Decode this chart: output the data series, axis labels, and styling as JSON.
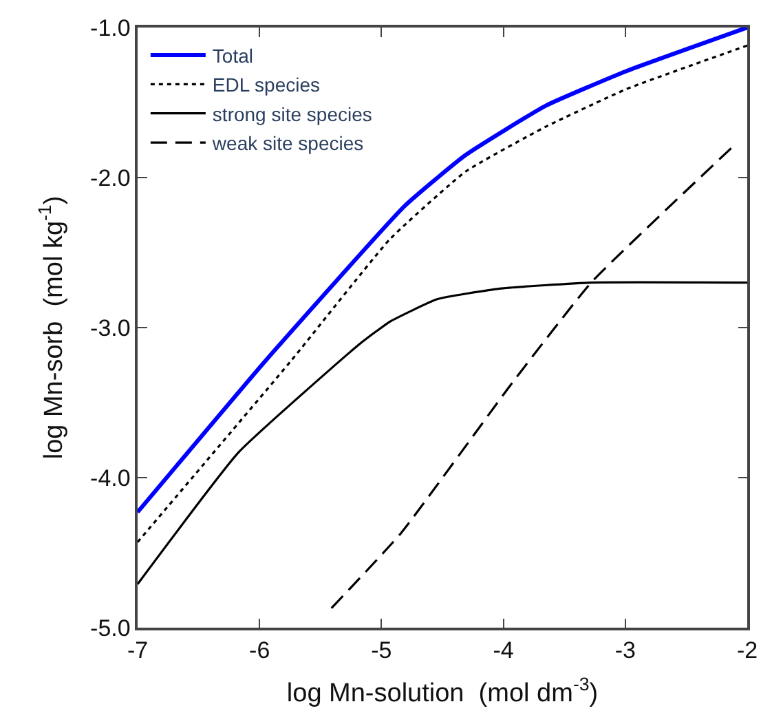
{
  "chart_data": {
    "type": "line",
    "xlabel": "log Mn-solution  (mol dm$^{-3}$)",
    "ylabel": "log Mn-sorb  (mol kg$^{-1}$)",
    "xlim": [
      -7,
      -2
    ],
    "ylim": [
      -5,
      -1
    ],
    "xticks": [
      -7,
      -6,
      -5,
      -4,
      -3,
      -2
    ],
    "yticks": [
      {
        "value": -5,
        "label": "-5.0"
      },
      {
        "value": -4,
        "label": "-4.0"
      },
      {
        "value": -3,
        "label": "-3.0"
      },
      {
        "value": -2,
        "label": "-2.0"
      },
      {
        "value": -1,
        "label": "-1.0"
      }
    ],
    "legend": "top left",
    "marker": "none",
    "series": [
      {
        "name": "Total",
        "color": "#0000ff",
        "line_style": "solid",
        "x": [
          -7,
          -5.95,
          -4.81,
          -4.31,
          -3.65,
          -2.99,
          -2
        ],
        "values": [
          -4.23,
          -3.22,
          -2.19,
          -1.85,
          -1.52,
          -1.29,
          -1.0
        ]
      },
      {
        "name": "EDL species",
        "color": "#000000",
        "line_style": "dotted",
        "x": [
          -7,
          -5.74,
          -4.93,
          -4.31,
          -3.65,
          -2.99,
          -2
        ],
        "values": [
          -4.43,
          -3.22,
          -2.41,
          -1.96,
          -1.66,
          -1.41,
          -1.12
        ]
      },
      {
        "name": "strong site species",
        "color": "#000000",
        "line_style": "solid",
        "x": [
          -7,
          -6.17,
          -5.18,
          -4.93,
          -4.54,
          -4.03,
          -3.28,
          -2
        ],
        "values": [
          -4.71,
          -3.83,
          -3.11,
          -2.96,
          -2.81,
          -2.74,
          -2.7,
          -2.7
        ]
      },
      {
        "name": "weak site species",
        "color": "#000000",
        "line_style": "dashed",
        "x": [
          -5.41,
          -4.84,
          -3.92,
          -3.28,
          -2.1
        ],
        "values": [
          -4.87,
          -4.37,
          -3.36,
          -2.7,
          -1.78
        ]
      }
    ]
  }
}
